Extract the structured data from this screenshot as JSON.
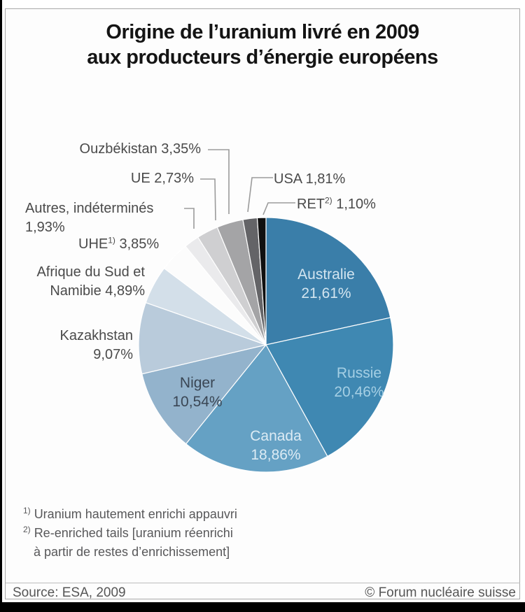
{
  "title": {
    "line1": "Origine de l’uranium livré en 2009",
    "line2": "aux producteurs d’énergie européens"
  },
  "chart_data": {
    "type": "pie",
    "title": "Origine de l’uranium livré en 2009 aux producteurs d’énergie européens",
    "unit": "%",
    "start_angle": "top, clockwise",
    "slices": [
      {
        "label": "Australie",
        "value": 21.61,
        "pct_label": "21,61%",
        "color": "#3a7ea9",
        "label_placement": "inside"
      },
      {
        "label": "Russie",
        "value": 20.46,
        "pct_label": "20,46%",
        "color": "#3f88b2",
        "label_placement": "inside"
      },
      {
        "label": "Canada",
        "value": 18.86,
        "pct_label": "18,86%",
        "color": "#65a1c4",
        "label_placement": "inside"
      },
      {
        "label": "Niger",
        "value": 10.54,
        "pct_label": "10,54%",
        "color": "#93b3cc",
        "label_placement": "inside"
      },
      {
        "label": "Kazakhstan",
        "value": 9.07,
        "pct_label": "9,07%",
        "color": "#b9cbdb",
        "label_placement": "outside"
      },
      {
        "label": "Afrique du Sud et Namibie",
        "value": 4.89,
        "pct_label": "4,89%",
        "color": "#d3dfe9",
        "label_placement": "outside"
      },
      {
        "label": "UHE",
        "sup": "1)",
        "value": 3.85,
        "pct_label": "3,85%",
        "color": "#fcfcfc",
        "label_placement": "outside"
      },
      {
        "label": "Autres, indéterminés",
        "value": 1.93,
        "pct_label": "1,93%",
        "color": "#eaeaec",
        "label_placement": "outside"
      },
      {
        "label": "UE",
        "value": 2.73,
        "pct_label": "2,73%",
        "color": "#cfcfd1",
        "label_placement": "outside"
      },
      {
        "label": "Ouzbékistan",
        "value": 3.35,
        "pct_label": "3,35%",
        "color": "#a4a4a6",
        "label_placement": "outside"
      },
      {
        "label": "USA",
        "value": 1.81,
        "pct_label": "1,81%",
        "color": "#646467",
        "label_placement": "outside"
      },
      {
        "label": "RET",
        "sup": "2)",
        "value": 1.1,
        "pct_label": "1,10%",
        "color": "#101010",
        "label_placement": "outside"
      }
    ]
  },
  "footnotes": {
    "fn1_sup": "1)",
    "fn1_text": "Uranium hautement enrichi appauvri",
    "fn2_sup": "2)",
    "fn2_line1": "Re-enriched tails [uranium réenrichi",
    "fn2_line2": "à partir de restes d’enrichissement]"
  },
  "footer": {
    "source": "Source: ESA, 2009",
    "copyright": "© Forum nucléaire suisse"
  }
}
